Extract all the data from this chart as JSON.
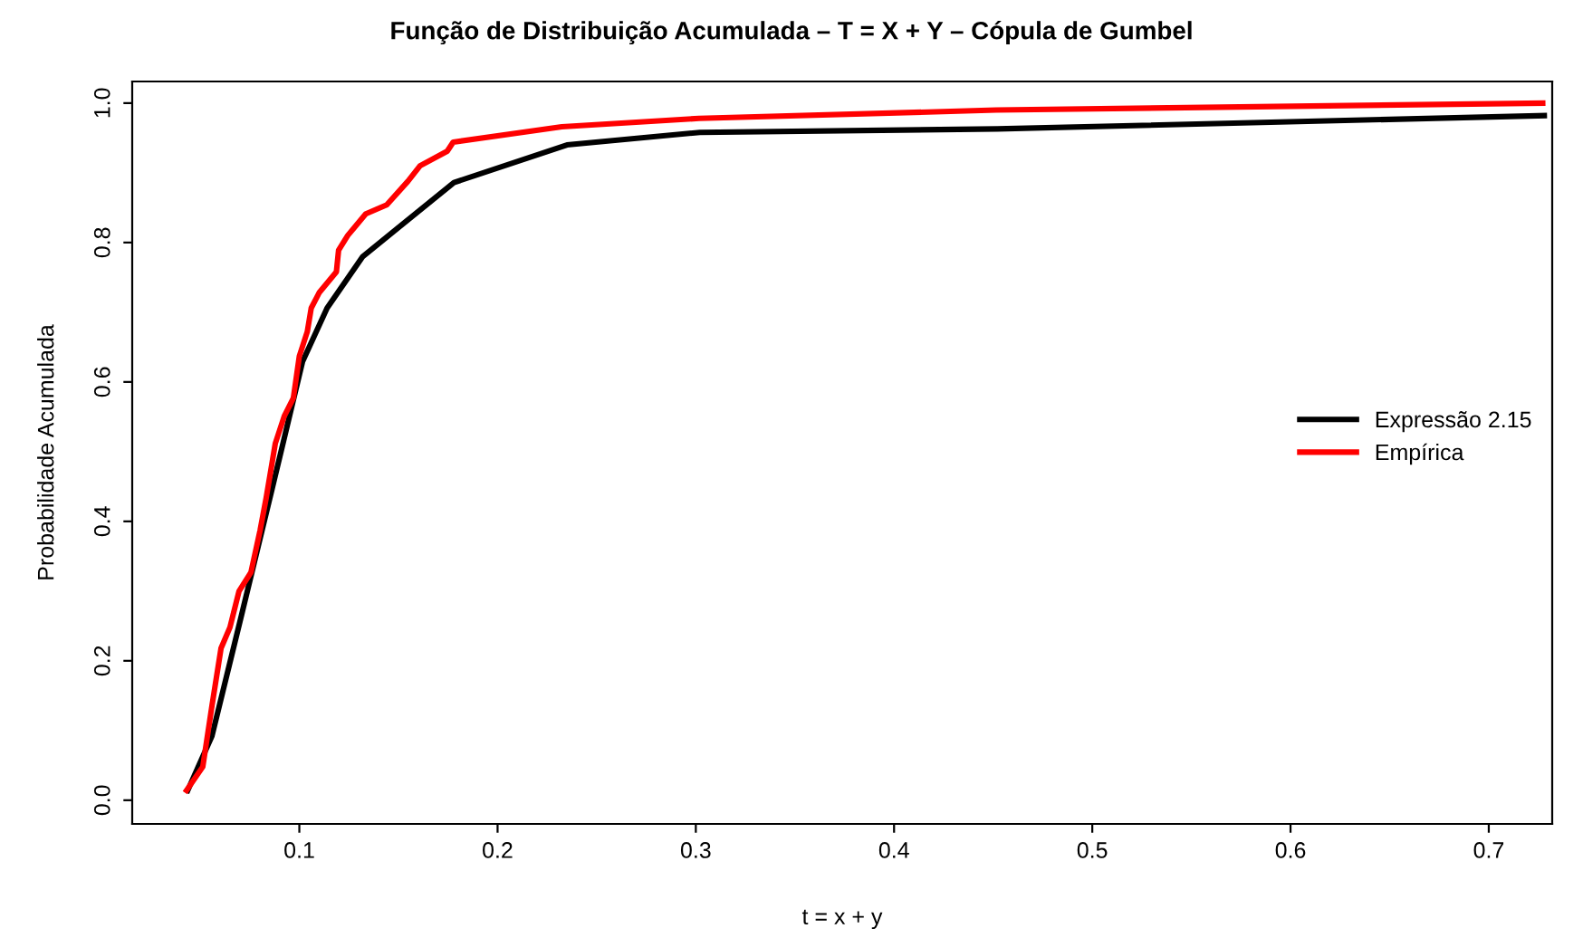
{
  "chart_data": {
    "type": "line",
    "title": "Função de Distribuição Acumulada – T = X + Y – Cópula de Gumbel",
    "xlabel": "t = x + y",
    "ylabel": "Probabilidade Acumulada",
    "xlim": [
      0.0157,
      0.732
    ],
    "ylim": [
      -0.034,
      1.031
    ],
    "xticks": [
      0.1,
      0.2,
      0.3,
      0.4,
      0.5,
      0.6,
      0.7
    ],
    "yticks": [
      {
        "value": 0,
        "label": "0.0"
      },
      0.2,
      0.4,
      0.6,
      0.8,
      {
        "value": 1,
        "label": "1.0"
      }
    ],
    "grid": false,
    "legend": "right",
    "marker": "none",
    "line_style": "solid",
    "series": [
      {
        "name": "Expressão 2.15",
        "color": "#000000",
        "x": [
          0.0437,
          0.0559,
          0.0708,
          0.0863,
          0.1016,
          0.114,
          0.132,
          0.178,
          0.235,
          0.302,
          0.452,
          0.728
        ],
        "values": [
          0.014,
          0.092,
          0.265,
          0.447,
          0.629,
          0.706,
          0.78,
          0.886,
          0.94,
          0.958,
          0.963,
          0.982
        ]
      },
      {
        "name": "Empírica",
        "color": "#ff0000",
        "x": [
          0.0431,
          0.0513,
          0.0559,
          0.0605,
          0.065,
          0.0696,
          0.0756,
          0.0802,
          0.0833,
          0.0879,
          0.0924,
          0.097,
          0.1,
          0.104,
          0.106,
          0.11,
          0.1187,
          0.1198,
          0.1244,
          0.1335,
          0.1441,
          0.1548,
          0.1609,
          0.1746,
          0.1776,
          0.2324,
          0.3016,
          0.4516,
          0.7272
        ],
        "values": [
          0.014,
          0.048,
          0.135,
          0.218,
          0.248,
          0.3,
          0.327,
          0.387,
          0.434,
          0.512,
          0.551,
          0.577,
          0.637,
          0.672,
          0.706,
          0.728,
          0.758,
          0.789,
          0.81,
          0.841,
          0.854,
          0.888,
          0.91,
          0.931,
          0.944,
          0.966,
          0.978,
          0.99,
          1.0
        ]
      }
    ]
  }
}
